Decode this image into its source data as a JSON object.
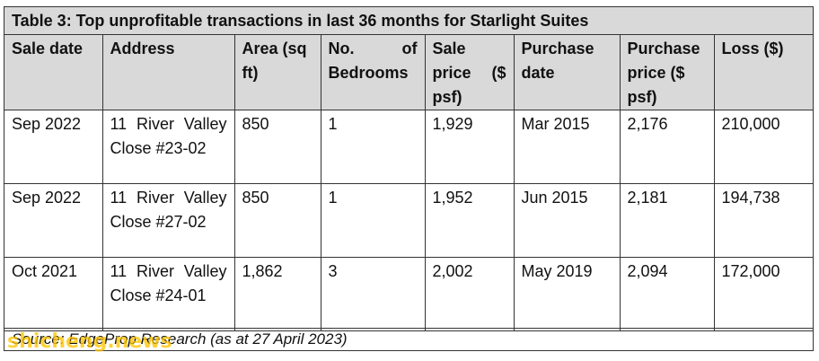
{
  "table": {
    "title": "Table 3: Top unprofitable transactions in last 36 months for Starlight Suites",
    "headers": [
      "Sale date",
      "Address",
      "Area (sq ft)",
      "No. of Bedrooms",
      "Sale price ($ psf)",
      "Purchase date",
      "Purchase price ($ psf)",
      "Loss ($)"
    ],
    "rows": [
      [
        "Sep 2022",
        "11 River Valley Close #23-02",
        "850",
        "1",
        "1,929",
        "Mar 2015",
        "2,176",
        "210,000"
      ],
      [
        "Sep 2022",
        "11 River Valley Close #27-02",
        "850",
        "1",
        "1,952",
        "Jun 2015",
        "2,181",
        "194,738"
      ],
      [
        "Oct 2021",
        "11 River Valley Close #24-01",
        "1,862",
        "3",
        "2,002",
        "May 2019",
        "2,094",
        "172,000"
      ]
    ],
    "source": "Source: EdgeProp Research (as at 27 April 2023)"
  },
  "watermark": {
    "text": "shicheng.news",
    "color": "#ffc400"
  }
}
